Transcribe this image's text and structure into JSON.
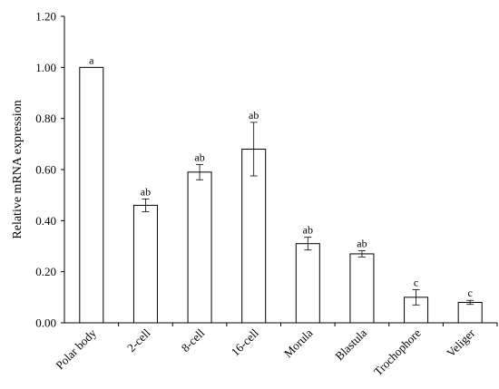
{
  "chart_data": {
    "type": "bar",
    "categories": [
      "Polar body",
      "2-cell",
      "8-cell",
      "16-cell",
      "Morula",
      "Blastula",
      "Trochophore",
      "Veliger"
    ],
    "values": [
      1.0,
      0.46,
      0.59,
      0.68,
      0.31,
      0.27,
      0.1,
      0.08
    ],
    "errors": [
      0.0,
      0.025,
      0.03,
      0.105,
      0.025,
      0.012,
      0.03,
      0.008
    ],
    "significance": [
      "a",
      "ab",
      "ab",
      "ab",
      "ab",
      "ab",
      "c",
      "c"
    ],
    "title": "",
    "xlabel": "",
    "ylabel": "Relative  mRNA expression",
    "ylim": [
      0,
      1.2
    ],
    "yticks": [
      "0.00",
      "0.20",
      "0.40",
      "0.60",
      "0.80",
      "1.00",
      "1.20"
    ],
    "grid": false,
    "legend": "none",
    "bar_fill": "#ffffff",
    "bar_stroke": "#000000"
  }
}
